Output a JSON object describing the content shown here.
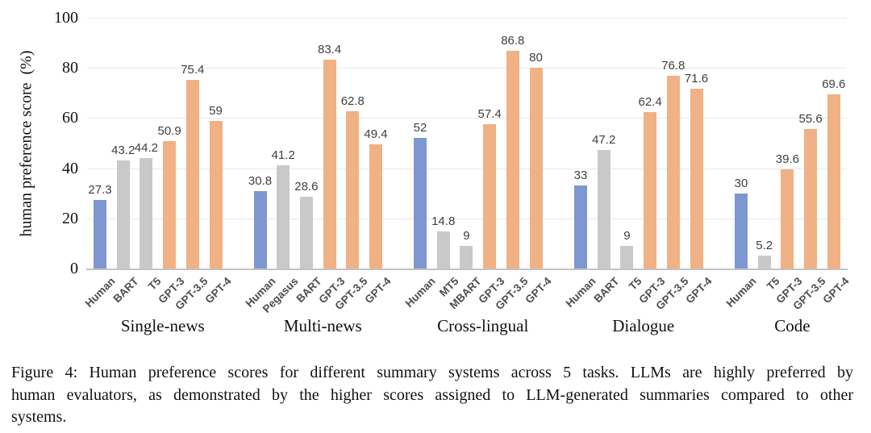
{
  "chart_data": {
    "type": "bar",
    "title": "",
    "xlabel": "",
    "ylabel": "human preference score  (%)",
    "ylim": [
      0,
      100
    ],
    "yticks": [
      0,
      20,
      40,
      60,
      80,
      100
    ],
    "grid": "horizontal",
    "legend_position": "none",
    "colors": {
      "human": "#7E96D1",
      "baseline": "#C9C9C9",
      "llm": "#F0B184"
    },
    "groups": [
      {
        "label": "Single-news",
        "bars": [
          {
            "name": "Human",
            "value": 27.3,
            "role": "human"
          },
          {
            "name": "BART",
            "value": 43.2,
            "role": "baseline"
          },
          {
            "name": "T5",
            "value": 44.2,
            "role": "baseline"
          },
          {
            "name": "GPT-3",
            "value": 50.9,
            "role": "llm"
          },
          {
            "name": "GPT-3.5",
            "value": 75.4,
            "role": "llm"
          },
          {
            "name": "GPT-4",
            "value": 59,
            "role": "llm"
          }
        ]
      },
      {
        "label": "Multi-news",
        "bars": [
          {
            "name": "Human",
            "value": 30.8,
            "role": "human"
          },
          {
            "name": "Pegasus",
            "value": 41.2,
            "role": "baseline"
          },
          {
            "name": "BART",
            "value": 28.6,
            "role": "baseline"
          },
          {
            "name": "GPT-3",
            "value": 83.4,
            "role": "llm"
          },
          {
            "name": "GPT-3.5",
            "value": 62.8,
            "role": "llm"
          },
          {
            "name": "GPT-4",
            "value": 49.4,
            "role": "llm"
          }
        ]
      },
      {
        "label": "Cross-lingual",
        "bars": [
          {
            "name": "Human",
            "value": 52,
            "role": "human"
          },
          {
            "name": "MT5",
            "value": 14.8,
            "role": "baseline"
          },
          {
            "name": "MBART",
            "value": 9,
            "role": "baseline"
          },
          {
            "name": "GPT-3",
            "value": 57.4,
            "role": "llm"
          },
          {
            "name": "GPT-3.5",
            "value": 86.8,
            "role": "llm"
          },
          {
            "name": "GPT-4",
            "value": 80,
            "role": "llm"
          }
        ]
      },
      {
        "label": "Dialogue",
        "bars": [
          {
            "name": "Human",
            "value": 33,
            "role": "human"
          },
          {
            "name": "BART",
            "value": 47.2,
            "role": "baseline"
          },
          {
            "name": "T5",
            "value": 9,
            "role": "baseline"
          },
          {
            "name": "GPT-3",
            "value": 62.4,
            "role": "llm"
          },
          {
            "name": "GPT-3.5",
            "value": 76.8,
            "role": "llm"
          },
          {
            "name": "GPT-4",
            "value": 71.6,
            "role": "llm"
          }
        ]
      },
      {
        "label": "Code",
        "bars": [
          {
            "name": "Human",
            "value": 30,
            "role": "human"
          },
          {
            "name": "T5",
            "value": 5.2,
            "role": "baseline"
          },
          {
            "name": "GPT-3",
            "value": 39.6,
            "role": "llm"
          },
          {
            "name": "GPT-3.5",
            "value": 55.6,
            "role": "llm"
          },
          {
            "name": "GPT-4",
            "value": 69.6,
            "role": "llm"
          }
        ]
      }
    ]
  },
  "caption": {
    "lines": [
      "Figure 4: Human preference scores for different summary systems across 5 tasks. LLMs are highly preferred by",
      "human evaluators, as demonstrated by the higher scores assigned to LLM-generated summaries compared to other",
      "systems."
    ]
  }
}
